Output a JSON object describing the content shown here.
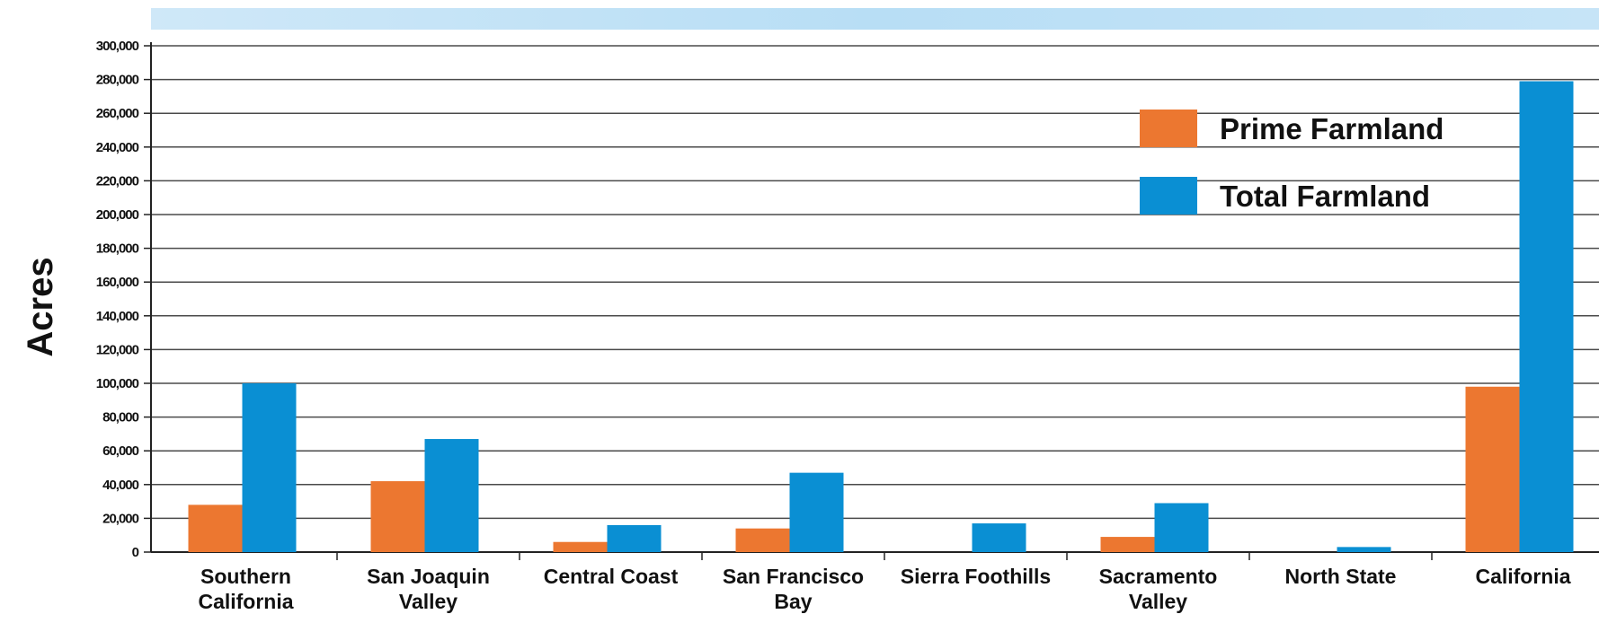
{
  "chart_data": {
    "type": "bar",
    "title": "",
    "xlabel": "",
    "ylabel": "Acres",
    "ylim": [
      0,
      300000
    ],
    "yticks": [
      0,
      20000,
      40000,
      60000,
      80000,
      100000,
      120000,
      140000,
      160000,
      180000,
      200000,
      220000,
      240000,
      260000,
      280000,
      300000
    ],
    "ytick_labels": [
      "0",
      "20,000",
      "40,000",
      "60,000",
      "80,000",
      "100,000",
      "120,000",
      "140,000",
      "160,000",
      "180,000",
      "200,000",
      "220,000",
      "240,000",
      "260,000",
      "280,000",
      "300,000"
    ],
    "grid": true,
    "legend_position": "top-right",
    "categories": [
      [
        "Southern",
        "California"
      ],
      [
        "San Joaquin",
        "Valley"
      ],
      [
        "Central Coast"
      ],
      [
        "San Francisco",
        "Bay"
      ],
      [
        "Sierra Foothills"
      ],
      [
        "Sacramento",
        "Valley"
      ],
      [
        "North State"
      ],
      [
        "California"
      ]
    ],
    "series": [
      {
        "name": "Prime Farmland",
        "color": "#ec7730",
        "values": [
          28000,
          42000,
          6000,
          14000,
          0,
          9000,
          0,
          98000
        ]
      },
      {
        "name": "Total Farmland",
        "color": "#0a8fd3",
        "values": [
          100000,
          67000,
          16000,
          47000,
          17000,
          29000,
          3000,
          279000
        ]
      }
    ]
  }
}
